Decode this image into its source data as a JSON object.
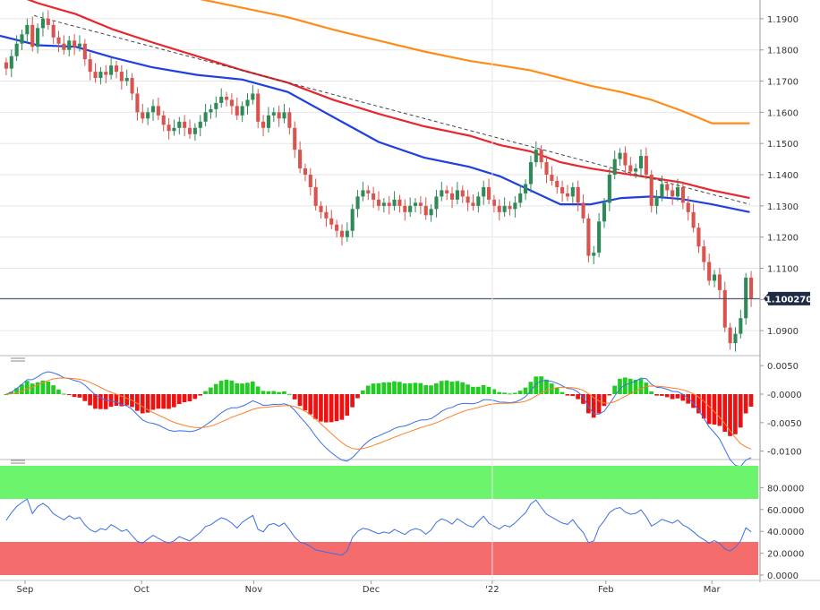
{
  "colors": {
    "up_candle": "#2e8b57",
    "down_candle": "#d9534f",
    "sma_fast": "#1f3fe0",
    "sma_mid": "#e8262c",
    "sma_slow": "#ff8c1a",
    "trendline": "#444444",
    "price_line": "#3b4a6b",
    "macd_pos": "#22cc22",
    "macd_neg": "#ee1111",
    "macd_line": "#3a6ee8",
    "signal_line": "#ff7f27",
    "rsi_line": "#3a6ee8",
    "overbought_zone": "#6cf56c",
    "oversold_zone": "#f56c6c",
    "grid": "#e6e6e6"
  },
  "current_price_label": "1.100270",
  "chart_data": [
    {
      "type": "candlestick",
      "panel": "price",
      "title": "",
      "ylim": [
        1.082,
        1.196
      ],
      "y_ticks": [
        "1.1900",
        "1.1800",
        "1.1700",
        "1.1600",
        "1.1500",
        "1.1400",
        "1.1300",
        "1.1200",
        "1.1100",
        "1.1000",
        "1.0900"
      ],
      "x_ticks": [
        "Sep",
        "Oct",
        "Nov",
        "Dec",
        "'22",
        "Feb",
        "Mar"
      ],
      "current_price": 1.10027,
      "trendline": [
        [
          0.045,
          1.191
        ],
        [
          0.99,
          1.1305
        ]
      ],
      "moving_averages": [
        {
          "period": "fast",
          "points": [
            [
              0.0,
              1.1845
            ],
            [
              0.05,
              1.1815
            ],
            [
              0.1,
              1.181
            ],
            [
              0.15,
              1.1775
            ],
            [
              0.2,
              1.1745
            ],
            [
              0.26,
              1.172
            ],
            [
              0.32,
              1.1705
            ],
            [
              0.38,
              1.1665
            ],
            [
              0.44,
              1.1585
            ],
            [
              0.5,
              1.1505
            ],
            [
              0.56,
              1.1455
            ],
            [
              0.62,
              1.1425
            ],
            [
              0.66,
              1.1395
            ],
            [
              0.7,
              1.135
            ],
            [
              0.74,
              1.1305
            ],
            [
              0.78,
              1.1305
            ],
            [
              0.82,
              1.1325
            ],
            [
              0.86,
              1.133
            ],
            [
              0.9,
              1.1322
            ],
            [
              0.94,
              1.1305
            ],
            [
              0.99,
              1.128
            ]
          ]
        },
        {
          "period": "mid",
          "points": [
            [
              0.0,
              1.1995
            ],
            [
              0.05,
              1.195
            ],
            [
              0.1,
              1.1915
            ],
            [
              0.15,
              1.1865
            ],
            [
              0.2,
              1.1825
            ],
            [
              0.26,
              1.178
            ],
            [
              0.32,
              1.1735
            ],
            [
              0.38,
              1.1695
            ],
            [
              0.44,
              1.164
            ],
            [
              0.5,
              1.1595
            ],
            [
              0.56,
              1.1555
            ],
            [
              0.62,
              1.1525
            ],
            [
              0.66,
              1.1495
            ],
            [
              0.7,
              1.1475
            ],
            [
              0.74,
              1.144
            ],
            [
              0.78,
              1.142
            ],
            [
              0.82,
              1.1405
            ],
            [
              0.86,
              1.139
            ],
            [
              0.9,
              1.1375
            ],
            [
              0.94,
              1.135
            ],
            [
              0.99,
              1.1325
            ]
          ]
        },
        {
          "period": "slow",
          "points": [
            [
              0.2,
              1.2
            ],
            [
              0.26,
              1.1965
            ],
            [
              0.32,
              1.1935
            ],
            [
              0.38,
              1.1905
            ],
            [
              0.44,
              1.1865
            ],
            [
              0.5,
              1.183
            ],
            [
              0.56,
              1.1795
            ],
            [
              0.62,
              1.1765
            ],
            [
              0.66,
              1.175
            ],
            [
              0.7,
              1.1735
            ],
            [
              0.74,
              1.171
            ],
            [
              0.78,
              1.1685
            ],
            [
              0.82,
              1.1665
            ],
            [
              0.86,
              1.164
            ],
            [
              0.9,
              1.1605
            ],
            [
              0.94,
              1.1565
            ],
            [
              0.99,
              1.1565
            ]
          ]
        }
      ],
      "closes": [
        1.174,
        1.178,
        1.182,
        1.185,
        1.188,
        1.181,
        1.187,
        1.19,
        1.188,
        1.184,
        1.182,
        1.18,
        1.183,
        1.181,
        1.182,
        1.177,
        1.173,
        1.171,
        1.173,
        1.172,
        1.175,
        1.173,
        1.17,
        1.171,
        1.166,
        1.16,
        1.158,
        1.16,
        1.162,
        1.159,
        1.156,
        1.154,
        1.155,
        1.157,
        1.155,
        1.153,
        1.155,
        1.157,
        1.16,
        1.161,
        1.163,
        1.165,
        1.164,
        1.162,
        1.159,
        1.162,
        1.164,
        1.166,
        1.157,
        1.155,
        1.159,
        1.16,
        1.158,
        1.16,
        1.155,
        1.148,
        1.142,
        1.14,
        1.136,
        1.13,
        1.128,
        1.126,
        1.124,
        1.122,
        1.12,
        1.122,
        1.129,
        1.133,
        1.135,
        1.134,
        1.132,
        1.13,
        1.131,
        1.13,
        1.132,
        1.13,
        1.128,
        1.13,
        1.131,
        1.13,
        1.127,
        1.129,
        1.133,
        1.135,
        1.134,
        1.132,
        1.135,
        1.133,
        1.131,
        1.13,
        1.133,
        1.136,
        1.132,
        1.13,
        1.128,
        1.13,
        1.129,
        1.131,
        1.134,
        1.137,
        1.144,
        1.148,
        1.144,
        1.14,
        1.138,
        1.136,
        1.134,
        1.133,
        1.136,
        1.131,
        1.126,
        1.114,
        1.115,
        1.125,
        1.131,
        1.14,
        1.145,
        1.147,
        1.143,
        1.141,
        1.142,
        1.146,
        1.14,
        1.13,
        1.133,
        1.137,
        1.135,
        1.133,
        1.136,
        1.131,
        1.128,
        1.123,
        1.117,
        1.112,
        1.106,
        1.108,
        1.103,
        1.091,
        1.086,
        1.089,
        1.094,
        1.107,
        1.1003
      ],
      "macd_hist_range": [
        -0.006,
        0.003
      ],
      "rsi_levels": [
        30,
        70
      ]
    }
  ]
}
